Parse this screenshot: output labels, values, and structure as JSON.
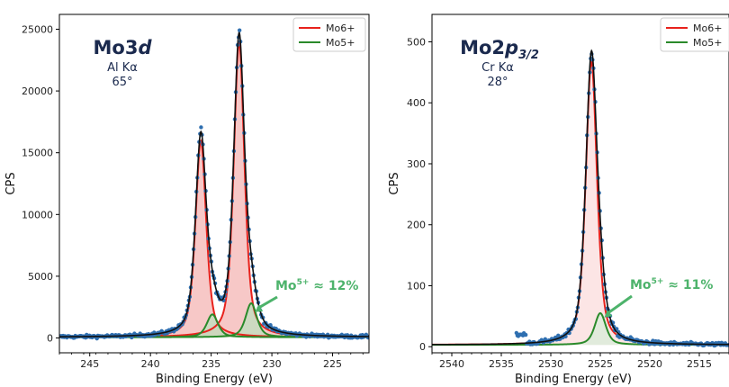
{
  "chart_data": [
    {
      "type": "line",
      "panel_label": "Mo3d",
      "title_main": "Mo3",
      "title_italic": "d",
      "source_label": "Al Kα",
      "angle_label": "65°",
      "xlabel": "Binding Energy (eV)",
      "ylabel": "CPS",
      "x_reversed": true,
      "xlim": [
        247.5,
        222
      ],
      "ylim": [
        -1200,
        26200
      ],
      "xticks": [
        245,
        240,
        235,
        230,
        225
      ],
      "yticks": [
        0,
        5000,
        10000,
        15000,
        20000,
        25000
      ],
      "legend_position": "top-right",
      "series": [
        {
          "name": "Mo6+",
          "color": "#e8221c",
          "fill": "#f4b6b4",
          "peaks": [
            {
              "center": 232.7,
              "height": 23900,
              "width": 1.05
            },
            {
              "center": 235.85,
              "height": 15900,
              "width": 1.05
            }
          ]
        },
        {
          "name": "Mo5+",
          "color": "#2a8a2a",
          "fill": "#bfe0bf",
          "peaks": [
            {
              "center": 231.7,
              "height": 2750,
              "width": 1.1
            },
            {
              "center": 234.9,
              "height": 1850,
              "width": 1.1
            }
          ]
        }
      ],
      "baseline": 60,
      "annotation": {
        "text_main": "Mo",
        "text_sup": "5+",
        "text_rest": " ≈ 12%",
        "color": "#4db36b",
        "points_to_x": 231.4,
        "points_to_y": 2100
      }
    },
    {
      "type": "line",
      "panel_label": "Mo2p3/2",
      "title_main": "Mo2",
      "title_italic": "p",
      "title_sub": "3/2",
      "source_label": "Cr Kα",
      "angle_label": "28°",
      "xlabel": "Binding Energy (eV)",
      "ylabel": "CPS",
      "x_reversed": true,
      "xlim": [
        2542,
        2512
      ],
      "ylim": [
        -10,
        545
      ],
      "xticks": [
        2540,
        2535,
        2530,
        2525,
        2520,
        2515
      ],
      "yticks": [
        0,
        100,
        200,
        300,
        400,
        500
      ],
      "legend_position": "top-right",
      "series": [
        {
          "name": "Mo6+",
          "color": "#e8221c",
          "fill": "#fbdcdc",
          "peaks": [
            {
              "center": 2525.9,
              "height": 465,
              "width": 1.35
            }
          ]
        },
        {
          "name": "Mo5+",
          "color": "#2a8a2a",
          "fill": "#d8ecd8",
          "peaks": [
            {
              "center": 2525.0,
              "height": 52,
              "width": 1.35
            }
          ]
        }
      ],
      "baseline": 3,
      "annotation": {
        "text_main": "Mo",
        "text_sup": "5+",
        "text_rest": " ≈ 11%",
        "color": "#4db36b",
        "points_to_x": 2524.6,
        "points_to_y": 48
      }
    }
  ]
}
